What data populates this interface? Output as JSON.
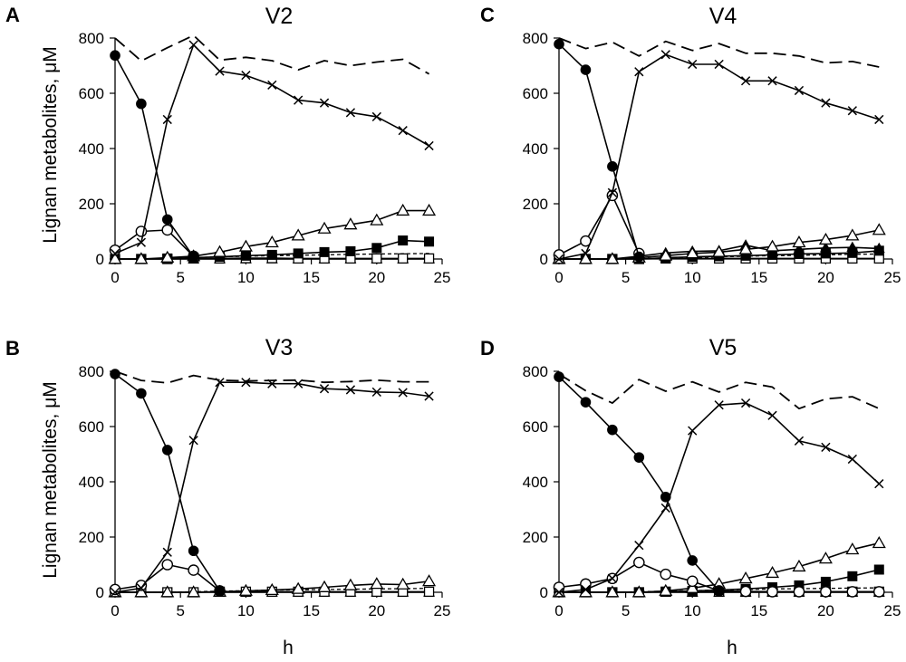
{
  "figure": {
    "xlabel": "h",
    "ylabel": "Lignan metabolites, μM"
  },
  "chart_data": [
    {
      "type": "line",
      "panel": "A",
      "title": "V2",
      "xlabel": "h",
      "ylabel": "Lignan metabolites, μM",
      "xlim": [
        0,
        25
      ],
      "ylim": [
        0,
        800
      ],
      "xticks": [
        "0",
        "5",
        "10",
        "15",
        "20",
        "25"
      ],
      "yticks": [
        "0",
        "200",
        "400",
        "600",
        "800"
      ],
      "x": [
        0,
        2,
        4,
        6,
        8,
        10,
        12,
        14,
        16,
        18,
        20,
        22,
        24
      ],
      "series": [
        {
          "marker": "filled-circle",
          "style": "solid",
          "values": [
            737,
            562,
            143,
            8,
            null,
            null,
            null,
            null,
            null,
            null,
            null,
            null,
            null
          ]
        },
        {
          "marker": "x",
          "style": "solid",
          "values": [
            20,
            60,
            505,
            775,
            680,
            665,
            630,
            575,
            565,
            530,
            515,
            465,
            410
          ]
        },
        {
          "marker": "open-circle",
          "style": "solid",
          "values": [
            32,
            100,
            105,
            10,
            null,
            null,
            null,
            null,
            null,
            null,
            null,
            null,
            null
          ]
        },
        {
          "marker": "open-triangle",
          "style": "solid",
          "values": [
            0,
            0,
            5,
            10,
            25,
            45,
            60,
            85,
            110,
            125,
            140,
            175,
            175
          ]
        },
        {
          "marker": "filled-square",
          "style": "solid",
          "values": [
            0,
            0,
            2,
            5,
            8,
            12,
            15,
            20,
            25,
            28,
            40,
            67,
            63
          ]
        },
        {
          "marker": "open-square",
          "style": "solid",
          "values": [
            0,
            0,
            0,
            2,
            2,
            3,
            3,
            2,
            2,
            2,
            2,
            2,
            2
          ]
        },
        {
          "marker": "filled-triangle",
          "style": "solid",
          "values": [
            0,
            0,
            0,
            0,
            0,
            0,
            0,
            0,
            0,
            0,
            0,
            0,
            0
          ]
        },
        {
          "marker": "none",
          "style": "short-dash",
          "values": [
            0,
            0,
            2,
            5,
            8,
            10,
            12,
            13,
            15,
            17,
            18,
            19,
            20
          ]
        },
        {
          "marker": "none",
          "style": "long-dash",
          "values": [
            800,
            717,
            765,
            810,
            720,
            730,
            718,
            685,
            718,
            700,
            713,
            723,
            670
          ]
        }
      ]
    },
    {
      "type": "line",
      "panel": "C",
      "title": "V4",
      "xlabel": "h",
      "ylabel": "",
      "xlim": [
        0,
        25
      ],
      "ylim": [
        0,
        800
      ],
      "xticks": [
        "0",
        "5",
        "10",
        "15",
        "20",
        "25"
      ],
      "yticks": [
        "0",
        "200",
        "400",
        "600",
        "800"
      ],
      "x": [
        0,
        2,
        4,
        6,
        8,
        10,
        12,
        14,
        16,
        18,
        20,
        22,
        24
      ],
      "series": [
        {
          "marker": "filled-circle",
          "style": "solid",
          "values": [
            778,
            685,
            335,
            8,
            null,
            null,
            null,
            null,
            null,
            null,
            null,
            null,
            null
          ]
        },
        {
          "marker": "x",
          "style": "solid",
          "values": [
            0,
            20,
            240,
            678,
            740,
            705,
            705,
            645,
            645,
            610,
            565,
            537,
            505
          ]
        },
        {
          "marker": "open-circle",
          "style": "solid",
          "values": [
            15,
            65,
            230,
            20,
            null,
            null,
            null,
            null,
            null,
            null,
            null,
            null,
            null
          ]
        },
        {
          "marker": "open-triangle",
          "style": "solid",
          "values": [
            0,
            0,
            0,
            5,
            12,
            20,
            25,
            35,
            45,
            60,
            70,
            85,
            105
          ]
        },
        {
          "marker": "filled-triangle",
          "style": "solid",
          "values": [
            0,
            0,
            0,
            10,
            22,
            28,
            30,
            50,
            30,
            35,
            40,
            42,
            38
          ]
        },
        {
          "marker": "filled-square",
          "style": "solid",
          "values": [
            0,
            0,
            0,
            0,
            5,
            8,
            10,
            12,
            15,
            18,
            20,
            22,
            30
          ]
        },
        {
          "marker": "open-square",
          "style": "solid",
          "values": [
            0,
            0,
            0,
            0,
            2,
            2,
            2,
            2,
            2,
            2,
            2,
            2,
            2
          ]
        },
        {
          "marker": "none",
          "style": "short-dash",
          "values": [
            0,
            0,
            0,
            2,
            3,
            5,
            8,
            10,
            12,
            13,
            15,
            17,
            18
          ]
        },
        {
          "marker": "none",
          "style": "long-dash",
          "values": [
            800,
            762,
            785,
            735,
            788,
            755,
            780,
            745,
            745,
            735,
            710,
            715,
            695
          ]
        }
      ]
    },
    {
      "type": "line",
      "panel": "B",
      "title": "V3",
      "xlabel": "h",
      "ylabel": "Lignan metabolites, μM",
      "xlim": [
        0,
        25
      ],
      "ylim": [
        0,
        800
      ],
      "xticks": [
        "0",
        "5",
        "10",
        "15",
        "20",
        "25"
      ],
      "yticks": [
        "0",
        "200",
        "400",
        "600",
        "800"
      ],
      "x": [
        0,
        2,
        4,
        6,
        8,
        10,
        12,
        14,
        16,
        18,
        20,
        22,
        24
      ],
      "series": [
        {
          "marker": "filled-circle",
          "style": "solid",
          "values": [
            790,
            720,
            515,
            150,
            5,
            null,
            null,
            null,
            null,
            null,
            null,
            null,
            null
          ]
        },
        {
          "marker": "x",
          "style": "solid",
          "values": [
            0,
            15,
            145,
            550,
            760,
            760,
            755,
            755,
            737,
            733,
            725,
            723,
            710
          ]
        },
        {
          "marker": "open-circle",
          "style": "solid",
          "values": [
            10,
            25,
            100,
            80,
            5,
            null,
            null,
            null,
            null,
            null,
            null,
            null,
            null
          ]
        },
        {
          "marker": "open-triangle",
          "style": "solid",
          "values": [
            0,
            0,
            0,
            0,
            2,
            5,
            8,
            12,
            18,
            25,
            30,
            28,
            40
          ]
        },
        {
          "marker": "open-square",
          "style": "solid",
          "values": [
            0,
            0,
            0,
            0,
            2,
            2,
            2,
            2,
            2,
            2,
            2,
            2,
            2
          ]
        },
        {
          "marker": "filled-triangle",
          "style": "solid",
          "values": [
            0,
            0,
            0,
            0,
            0,
            0,
            0,
            0,
            0,
            0,
            0,
            0,
            0
          ]
        },
        {
          "marker": "none",
          "style": "short-dash",
          "values": [
            0,
            0,
            0,
            2,
            4,
            6,
            8,
            9,
            10,
            11,
            12,
            13,
            14
          ]
        },
        {
          "marker": "none",
          "style": "long-dash",
          "values": [
            800,
            767,
            758,
            785,
            768,
            765,
            767,
            768,
            760,
            763,
            768,
            762,
            762
          ]
        }
      ]
    },
    {
      "type": "line",
      "panel": "D",
      "title": "V5",
      "xlabel": "h",
      "ylabel": "",
      "xlim": [
        0,
        25
      ],
      "ylim": [
        0,
        800
      ],
      "xticks": [
        "0",
        "5",
        "10",
        "15",
        "20",
        "25"
      ],
      "yticks": [
        "0",
        "200",
        "400",
        "600",
        "800"
      ],
      "x": [
        0,
        2,
        4,
        6,
        8,
        10,
        12,
        14,
        16,
        18,
        20,
        22,
        24
      ],
      "series": [
        {
          "marker": "filled-circle",
          "style": "solid",
          "values": [
            780,
            688,
            588,
            488,
            345,
            115,
            5,
            null,
            null,
            null,
            null,
            null,
            null
          ]
        },
        {
          "marker": "x",
          "style": "solid",
          "values": [
            0,
            10,
            50,
            170,
            305,
            585,
            678,
            685,
            640,
            548,
            525,
            482,
            393
          ]
        },
        {
          "marker": "open-circle",
          "style": "solid",
          "values": [
            18,
            30,
            50,
            108,
            65,
            40,
            5,
            3,
            2,
            2,
            2,
            2,
            2
          ]
        },
        {
          "marker": "open-triangle",
          "style": "solid",
          "values": [
            0,
            0,
            0,
            0,
            5,
            15,
            30,
            50,
            70,
            93,
            122,
            155,
            178
          ]
        },
        {
          "marker": "filled-square",
          "style": "solid",
          "values": [
            0,
            0,
            0,
            0,
            2,
            5,
            8,
            12,
            18,
            25,
            38,
            58,
            82
          ]
        },
        {
          "marker": "open-square",
          "style": "solid",
          "values": [
            0,
            0,
            0,
            0,
            2,
            2,
            2,
            2,
            2,
            2,
            2,
            2,
            2
          ]
        },
        {
          "marker": "filled-triangle",
          "style": "solid",
          "values": [
            0,
            0,
            0,
            0,
            0,
            0,
            0,
            0,
            0,
            0,
            0,
            0,
            0
          ]
        },
        {
          "marker": "none",
          "style": "short-dash",
          "values": [
            0,
            0,
            0,
            2,
            4,
            6,
            8,
            10,
            12,
            13,
            14,
            15,
            16
          ]
        },
        {
          "marker": "none",
          "style": "long-dash",
          "values": [
            790,
            730,
            685,
            770,
            728,
            762,
            725,
            760,
            743,
            665,
            700,
            708,
            665
          ]
        }
      ]
    }
  ]
}
